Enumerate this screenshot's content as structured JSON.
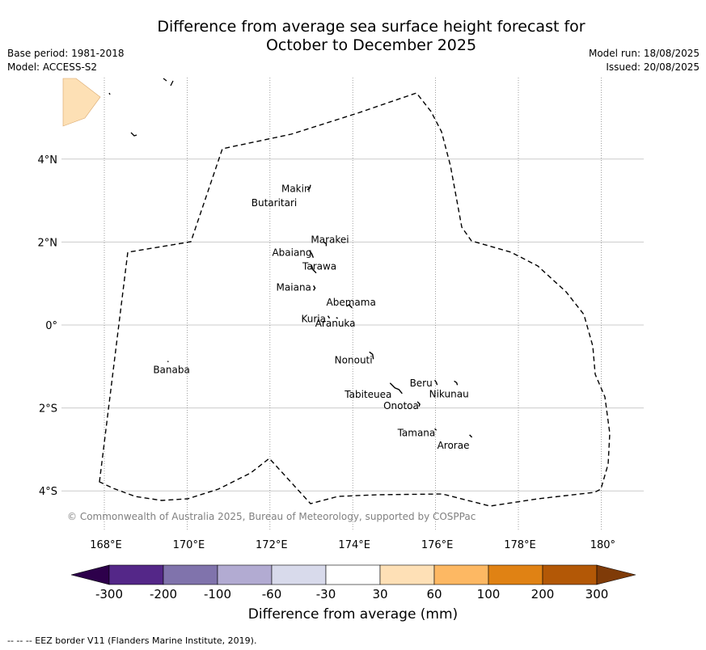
{
  "title_line1": "Difference from average sea surface height forecast for",
  "title_line2": "October to December 2025",
  "meta_left": {
    "base_period": "Base period: 1981-2018",
    "model": "Model: ACCESS-S2"
  },
  "meta_right": {
    "model_run": "Model run: 18/08/2025",
    "issued": "Issued: 20/08/2025"
  },
  "credit": "© Commonwealth of Australia 2025, Bureau of Meteorology, supported by COSPPac",
  "footnote": "--  --  -- EEZ border V11 (Flanders Marine Institute, 2019).",
  "map": {
    "lon_ticks": [
      {
        "lon": 168,
        "label": "168°E"
      },
      {
        "lon": 170,
        "label": "170°E"
      },
      {
        "lon": 172,
        "label": "172°E"
      },
      {
        "lon": 174,
        "label": "174°E"
      },
      {
        "lon": 176,
        "label": "176°E"
      },
      {
        "lon": 178,
        "label": "178°E"
      },
      {
        "lon": 180,
        "label": "180°"
      }
    ],
    "lat_ticks": [
      {
        "lat": 4,
        "label": "4°N"
      },
      {
        "lat": 2,
        "label": "2°N"
      },
      {
        "lat": 0,
        "label": "0°"
      },
      {
        "lat": -2,
        "label": "2°S"
      },
      {
        "lat": -4,
        "label": "4°S"
      }
    ],
    "islands": [
      {
        "name": "Makin",
        "lon": 172.98,
        "lat": 3.3
      },
      {
        "name": "Butaritari",
        "lon": 172.8,
        "lat": 3.1
      },
      {
        "name": "Marakei",
        "lon": 173.3,
        "lat": 2.0
      },
      {
        "name": "Abaiang",
        "lon": 172.95,
        "lat": 1.8
      },
      {
        "name": "Tarawa",
        "lon": 173.0,
        "lat": 1.45
      },
      {
        "name": "Maiana",
        "lon": 173.05,
        "lat": 0.95
      },
      {
        "name": "Abemama",
        "lon": 173.85,
        "lat": 0.45
      },
      {
        "name": "Kuria",
        "lon": 173.4,
        "lat": 0.22
      },
      {
        "name": "Aranuka",
        "lon": 173.6,
        "lat": 0.18
      },
      {
        "name": "Nonouti",
        "lon": 174.4,
        "lat": -0.65
      },
      {
        "name": "Tabiteuea",
        "lon": 174.9,
        "lat": -1.4
      },
      {
        "name": "Beru",
        "lon": 175.98,
        "lat": -1.33
      },
      {
        "name": "Nikunau",
        "lon": 176.45,
        "lat": -1.35
      },
      {
        "name": "Onotoa",
        "lon": 175.56,
        "lat": -1.85
      },
      {
        "name": "Tamana",
        "lon": 175.98,
        "lat": -2.5
      },
      {
        "name": "Arorae",
        "lon": 176.82,
        "lat": -2.65
      },
      {
        "name": "Banaba",
        "lon": 169.53,
        "lat": -0.87
      }
    ],
    "anomaly_patch": {
      "category": "30 to 60",
      "color": "#fde0b5"
    },
    "eez_style": "dashed"
  },
  "colorbar": {
    "label": "Difference from average (mm)",
    "bins": [
      {
        "color": "#2d004b"
      },
      {
        "color": "#542788"
      },
      {
        "color": "#8073ac"
      },
      {
        "color": "#b2abd2"
      },
      {
        "color": "#d8daeb"
      },
      {
        "color": "#ffffff"
      },
      {
        "color": "#fee0b6"
      },
      {
        "color": "#fdb863"
      },
      {
        "color": "#e08214"
      },
      {
        "color": "#b35806"
      },
      {
        "color": "#7f3b08"
      }
    ],
    "tick_labels": [
      "-300",
      "-200",
      "-100",
      "-60",
      "-30",
      "30",
      "60",
      "100",
      "200",
      "300"
    ]
  }
}
